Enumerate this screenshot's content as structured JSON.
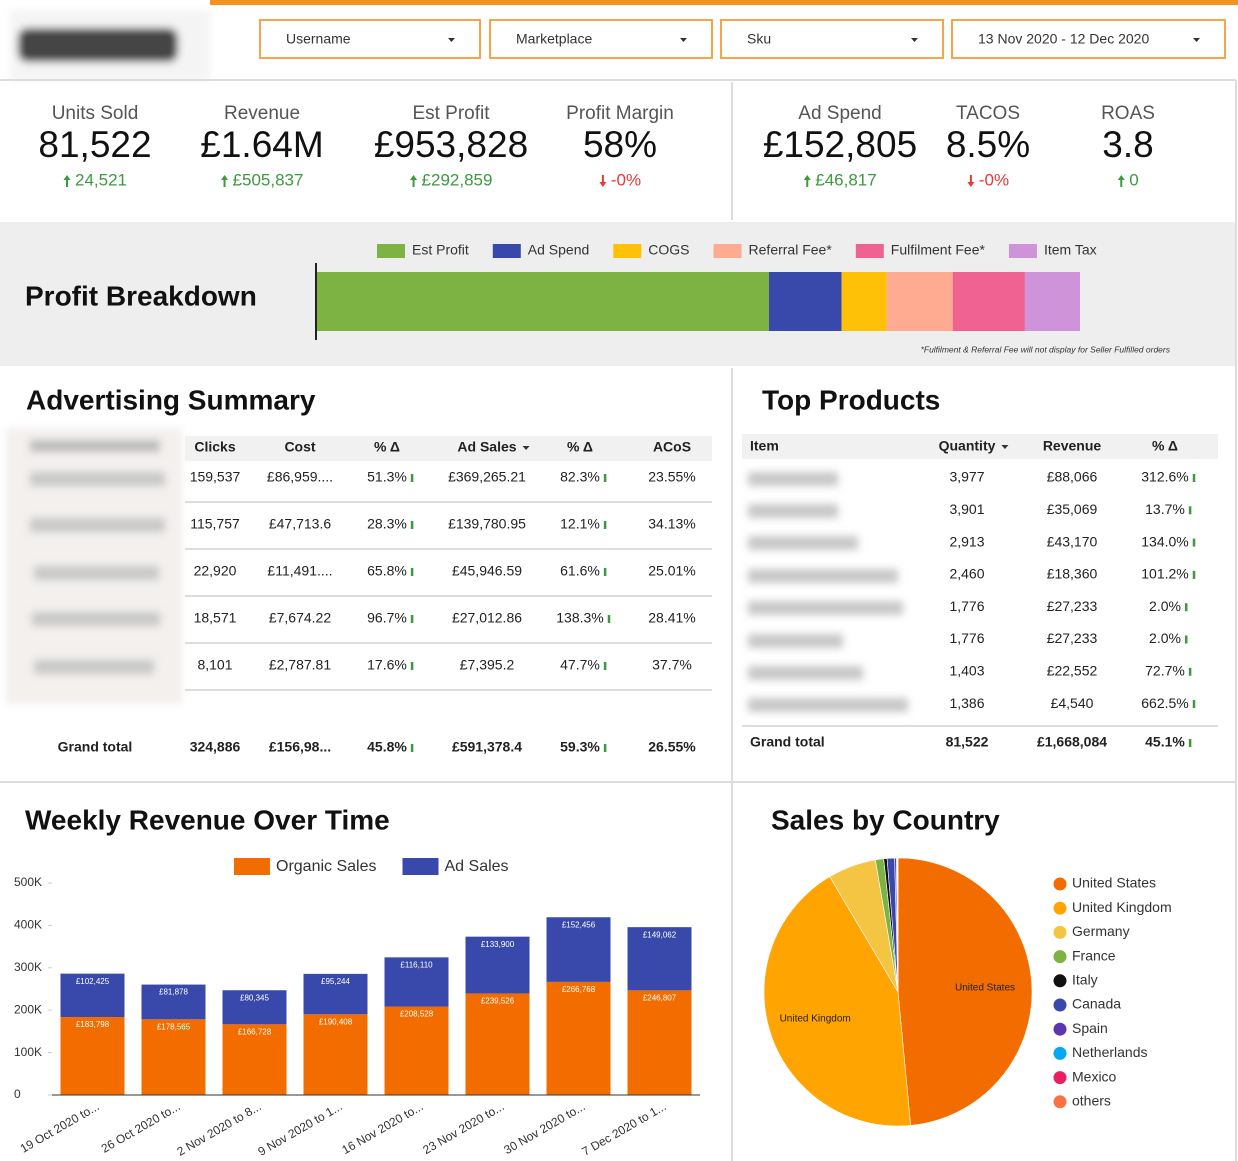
{
  "filters": [
    "Username",
    "Marketplace",
    "Sku",
    "13 Nov 2020 - 12 Dec 2020"
  ],
  "kpis": [
    {
      "label": "Units Sold",
      "value": "81,522",
      "change": "24,521",
      "trend": "up"
    },
    {
      "label": "Revenue",
      "value": "£1.64M",
      "change": "£505,837",
      "trend": "up"
    },
    {
      "label": "Est Profit",
      "value": "£953,828",
      "change": "£292,859",
      "trend": "up"
    },
    {
      "label": "Profit Margin",
      "value": "58%",
      "change": "-0%",
      "trend": "down"
    },
    {
      "label": "Ad Spend",
      "value": "£152,805",
      "change": "£46,817",
      "trend": "up"
    },
    {
      "label": "TACOS",
      "value": "8.5%",
      "change": "-0%",
      "trend": "down"
    },
    {
      "label": "ROAS",
      "value": "3.8",
      "change": "0",
      "trend": "up"
    }
  ],
  "advertising_summary": {
    "title": "Advertising Summary",
    "columns": [
      "Clicks",
      "Cost",
      "% Δ",
      "Ad Sales",
      "% Δ",
      "ACoS"
    ],
    "rows": [
      [
        "159,537",
        "£86,959....",
        "51.3%",
        "£369,265.21",
        "82.3%",
        "23.55%"
      ],
      [
        "115,757",
        "£47,713.6",
        "28.3%",
        "£139,780.95",
        "12.1%",
        "34.13%"
      ],
      [
        "22,920",
        "£11,491....",
        "65.8%",
        "£45,946.59",
        "61.6%",
        "25.01%"
      ],
      [
        "18,571",
        "£7,674.22",
        "96.7%",
        "£27,012.86",
        "138.3%",
        "28.41%"
      ],
      [
        "8,101",
        "£2,787.81",
        "17.6%",
        "£7,395.2",
        "47.7%",
        "37.7%"
      ]
    ],
    "total_label": "Grand total",
    "total": [
      "324,886",
      "£156,98...",
      "45.8%",
      "£591,378.4",
      "59.3%",
      "26.55%"
    ]
  },
  "top_products": {
    "title": "Top Products",
    "columns": [
      "Item",
      "Quantity",
      "Revenue",
      "% Δ"
    ],
    "rows": [
      [
        "3,977",
        "£88,066",
        "312.6%"
      ],
      [
        "3,901",
        "£35,069",
        "13.7%"
      ],
      [
        "2,913",
        "£43,170",
        "134.0%"
      ],
      [
        "2,460",
        "£18,360",
        "101.2%"
      ],
      [
        "1,776",
        "£27,233",
        "2.0%"
      ],
      [
        "1,776",
        "£27,233",
        "2.0%"
      ],
      [
        "1,403",
        "£22,552",
        "72.7%"
      ],
      [
        "1,386",
        "£4,540",
        "662.5%"
      ]
    ],
    "total_label": "Grand total",
    "total": [
      "81,522",
      "£1,668,084",
      "45.1%"
    ]
  },
  "chart_data": [
    {
      "type": "bar",
      "orientation": "horizontal",
      "stacked": true,
      "title": "Profit Breakdown",
      "series": [
        {
          "name": "Est Profit",
          "color": "#7cb342",
          "values": [
            953828
          ]
        },
        {
          "name": "Ad Spend",
          "color": "#3949ab",
          "values": [
            152805
          ]
        },
        {
          "name": "COGS",
          "color": "#ffc107",
          "values": [
            95000
          ]
        },
        {
          "name": "Referral Fee*",
          "color": "#ffab91",
          "values": [
            139000
          ]
        },
        {
          "name": "Fulfilment Fee*",
          "color": "#f06292",
          "values": [
            152000
          ]
        },
        {
          "name": "Item Tax",
          "color": "#ce93d8",
          "values": [
            116000
          ]
        }
      ],
      "legend": "top",
      "note": "*Fulfilment & Referral Fee will not display for Seller Fulfilled orders"
    },
    {
      "type": "bar",
      "stacked": true,
      "title": "Weekly Revenue Over Time",
      "categories": [
        "19 Oct 2020 to...",
        "26 Oct 2020 to...",
        "2 Nov 2020 to 8...",
        "9 Nov 2020 to 1...",
        "16 Nov 2020 to...",
        "23 Nov 2020 to...",
        "30 Nov 2020 to...",
        "7 Dec 2020 to 1..."
      ],
      "series": [
        {
          "name": "Organic Sales",
          "color": "#f36c00",
          "values": [
            183798,
            178565,
            166728,
            190408,
            208528,
            239526,
            266768,
            246807
          ],
          "value_labels": [
            "£183,798",
            "£178,565",
            "£166,728",
            "£190,408",
            "£208,528",
            "£239,526",
            "£266,768",
            "£246,807"
          ]
        },
        {
          "name": "Ad Sales",
          "color": "#3949ab",
          "values": [
            102425,
            81878,
            80345,
            95244,
            116110,
            133900,
            152456,
            149062
          ],
          "value_labels": [
            "£102,425",
            "£81,878",
            "£80,345",
            "£95,244",
            "£116,110",
            "£133,900",
            "£152,456",
            "£149,062"
          ]
        }
      ],
      "ylim": [
        0,
        500000
      ],
      "yticks": [
        0,
        {
          "value": 100000,
          "label": "100K"
        },
        {
          "value": 200000,
          "label": "200K"
        },
        {
          "value": 300000,
          "label": "300K"
        },
        {
          "value": 400000,
          "label": "400K"
        },
        {
          "value": 500000,
          "label": "500K"
        }
      ],
      "grid": false,
      "legend": "top"
    },
    {
      "type": "pie",
      "title": "Sales by Country",
      "categories": [
        "United States",
        "United Kingdom",
        "Germany",
        "France",
        "Italy",
        "Canada",
        "Spain",
        "Netherlands",
        "Mexico",
        "others"
      ],
      "values": [
        48.5,
        43,
        5.8,
        1.0,
        0.4,
        0.9,
        0.2,
        0.1,
        0.05,
        0.05
      ],
      "colors": [
        "#f36c00",
        "#ffa400",
        "#f4c542",
        "#7cb342",
        "#111111",
        "#3949ab",
        "#5e35b1",
        "#03a9f4",
        "#e91e63",
        "#ff7043"
      ],
      "legend": "right"
    }
  ]
}
